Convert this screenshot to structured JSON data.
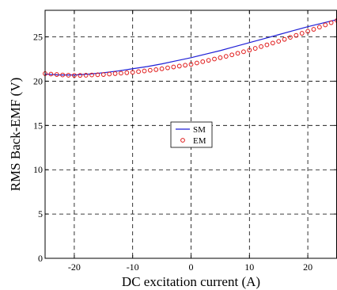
{
  "chart_data": {
    "type": "line",
    "xlabel": "DC excitation current (A)",
    "ylabel": "RMS Back-EMF (V)",
    "xlim": [
      -25,
      25
    ],
    "ylim": [
      0,
      28
    ],
    "xticks": [
      -20,
      -10,
      0,
      10,
      20
    ],
    "yticks": [
      0,
      5,
      10,
      15,
      20,
      25
    ],
    "grid": true,
    "legend_position": "center",
    "series": [
      {
        "name": "SM",
        "style": "line",
        "color": "#1f1fd6",
        "x": [
          -25,
          -22.5,
          -20,
          -17.5,
          -15,
          -12.5,
          -10,
          -7.5,
          -5,
          -2.5,
          0,
          2.5,
          5,
          7.5,
          10,
          12.5,
          15,
          17.5,
          20,
          22.5,
          25
        ],
        "y": [
          20.8,
          20.7,
          20.7,
          20.8,
          20.95,
          21.15,
          21.4,
          21.65,
          21.95,
          22.3,
          22.65,
          23.05,
          23.45,
          23.9,
          24.35,
          24.8,
          25.25,
          25.7,
          26.15,
          26.55,
          26.95
        ]
      },
      {
        "name": "EM",
        "style": "markers",
        "color": "#e01818",
        "x": [
          -25,
          -24,
          -23,
          -22,
          -21,
          -20,
          -19,
          -18,
          -17,
          -16,
          -15,
          -14,
          -13,
          -12,
          -11,
          -10,
          -9,
          -8,
          -7,
          -6,
          -5,
          -4,
          -3,
          -2,
          -1,
          0,
          1,
          2,
          3,
          4,
          5,
          6,
          7,
          8,
          9,
          10,
          11,
          12,
          13,
          14,
          15,
          16,
          17,
          18,
          19,
          20,
          21,
          22,
          23,
          24,
          25
        ],
        "y": [
          20.85,
          20.8,
          20.75,
          20.7,
          20.67,
          20.65,
          20.65,
          20.67,
          20.7,
          20.72,
          20.75,
          20.8,
          20.85,
          20.9,
          20.95,
          21.0,
          21.08,
          21.15,
          21.23,
          21.3,
          21.4,
          21.5,
          21.6,
          21.7,
          21.8,
          21.9,
          22.05,
          22.2,
          22.35,
          22.5,
          22.65,
          22.8,
          22.97,
          23.15,
          23.32,
          23.5,
          23.7,
          23.9,
          24.1,
          24.3,
          24.5,
          24.72,
          24.95,
          25.17,
          25.4,
          25.63,
          25.85,
          26.1,
          26.35,
          26.6,
          26.85
        ]
      }
    ]
  }
}
